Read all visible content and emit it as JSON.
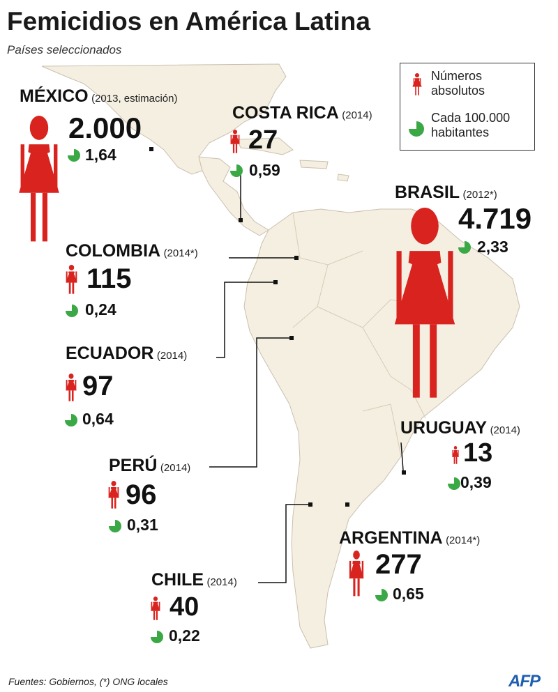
{
  "title": "Femicidios en América Latina",
  "subtitle": "Países seleccionados",
  "legend": {
    "absolute_label_line1": "Números",
    "absolute_label_line2": "absolutos",
    "rate_label_line1": "Cada 100.000",
    "rate_label_line2": "habitantes"
  },
  "countries": {
    "mexico": {
      "name": "MÉXICO",
      "year": "(2013, estimación)",
      "absolute": "2.000",
      "rate": "1,64"
    },
    "costa_rica": {
      "name": "COSTA RICA",
      "year": "(2014)",
      "absolute": "27",
      "rate": "0,59"
    },
    "brasil": {
      "name": "BRASIL",
      "year": "(2012*)",
      "absolute": "4.719",
      "rate": "2,33"
    },
    "colombia": {
      "name": "COLOMBIA",
      "year": "(2014*)",
      "absolute": "115",
      "rate": "0,24"
    },
    "ecuador": {
      "name": "ECUADOR",
      "year": "(2014)",
      "absolute": "97",
      "rate": "0,64"
    },
    "peru": {
      "name": "PERÚ",
      "year": "(2014)",
      "absolute": "96",
      "rate": "0,31"
    },
    "uruguay": {
      "name": "URUGUAY",
      "year": "(2014)",
      "absolute": "13",
      "rate": "0,39"
    },
    "argentina": {
      "name": "ARGENTINA",
      "year": "(2014*)",
      "absolute": "277",
      "rate": "0,65"
    },
    "chile": {
      "name": "CHILE",
      "year": "(2014)",
      "absolute": "40",
      "rate": "0,22"
    }
  },
  "source": "Fuentes: Gobiernos, (*) ONG locales",
  "credit": "AFP",
  "colors": {
    "figure": "#d8231f",
    "pie": "#3aa845",
    "land": "#f4efe1",
    "land_border": "#cbbfae",
    "leader": "#111111"
  },
  "icons": {
    "figure": "woman-figure-icon",
    "rate": "pie-rate-icon"
  }
}
